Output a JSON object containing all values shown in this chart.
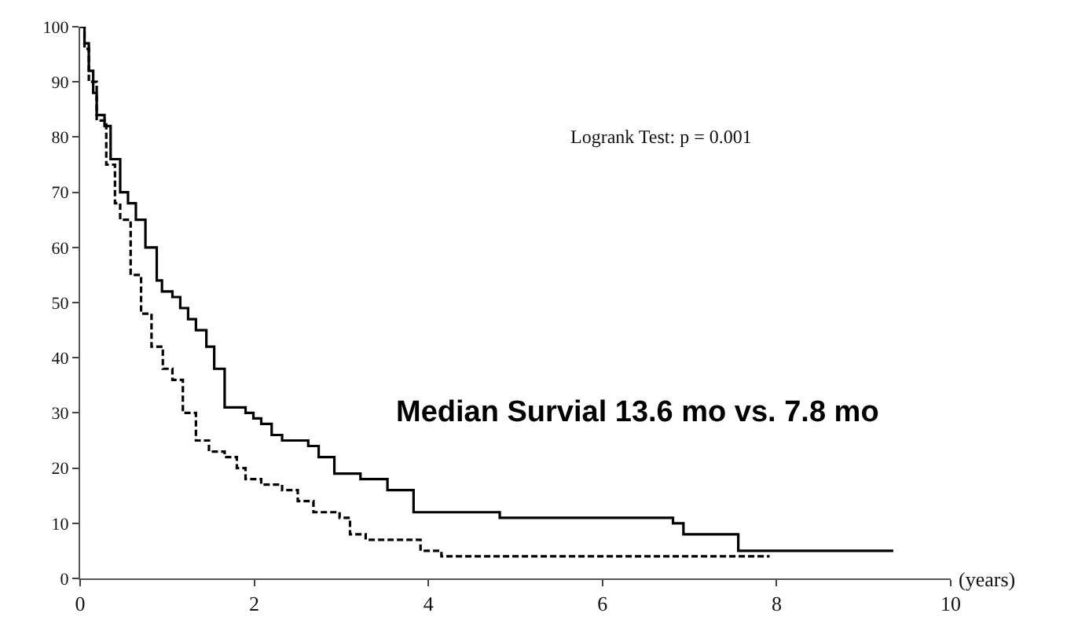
{
  "chart_data": {
    "type": "step",
    "xlabel": "(years)",
    "annotations": [
      "Logrank Test: p = 0.001",
      "Median Survial 13.6 mo vs. 7.8 mo"
    ],
    "xlim": [
      0,
      10
    ],
    "xticks": [
      0,
      2,
      4,
      6,
      8,
      10
    ],
    "ylim": [
      0,
      100
    ],
    "yticks": [
      0,
      10,
      20,
      30,
      40,
      50,
      60,
      70,
      80,
      90,
      100
    ],
    "marker": "none",
    "series": [
      {
        "color": "#000000",
        "line_style": "solid",
        "x": [
          0,
          0.05,
          0.1,
          0.15,
          0.19,
          0.28,
          0.35,
          0.46,
          0.55,
          0.64,
          0.75,
          0.88,
          0.94,
          1.06,
          1.15,
          1.24,
          1.33,
          1.45,
          1.54,
          1.66,
          1.9,
          1.99,
          2.08,
          2.2,
          2.32,
          2.62,
          2.74,
          2.92,
          3.22,
          3.53,
          3.83,
          4.82,
          6.81,
          6.93,
          7.56,
          9.34
        ],
        "values": [
          100,
          97,
          92,
          88,
          84,
          82,
          76,
          70,
          68,
          65,
          60,
          54,
          52,
          51,
          49,
          47,
          45,
          42,
          38,
          31,
          30,
          29,
          28,
          26,
          25,
          24,
          22,
          19,
          18,
          16,
          12,
          11,
          10,
          8,
          5,
          5
        ]
      },
      {
        "color": "#000000",
        "line_style": "dashed",
        "x": [
          0,
          0.05,
          0.1,
          0.19,
          0.3,
          0.4,
          0.46,
          0.58,
          0.7,
          0.82,
          0.95,
          1.06,
          1.18,
          1.33,
          1.48,
          1.66,
          1.8,
          1.9,
          2.08,
          2.32,
          2.5,
          2.68,
          2.98,
          3.1,
          3.28,
          3.91,
          4.15,
          7.92
        ],
        "values": [
          100,
          96,
          90,
          83,
          75,
          68,
          65,
          55,
          48,
          42,
          38,
          36,
          30,
          25,
          23,
          22,
          20,
          18,
          17,
          16,
          14,
          12,
          11,
          8,
          7,
          5,
          4,
          4
        ]
      }
    ]
  }
}
